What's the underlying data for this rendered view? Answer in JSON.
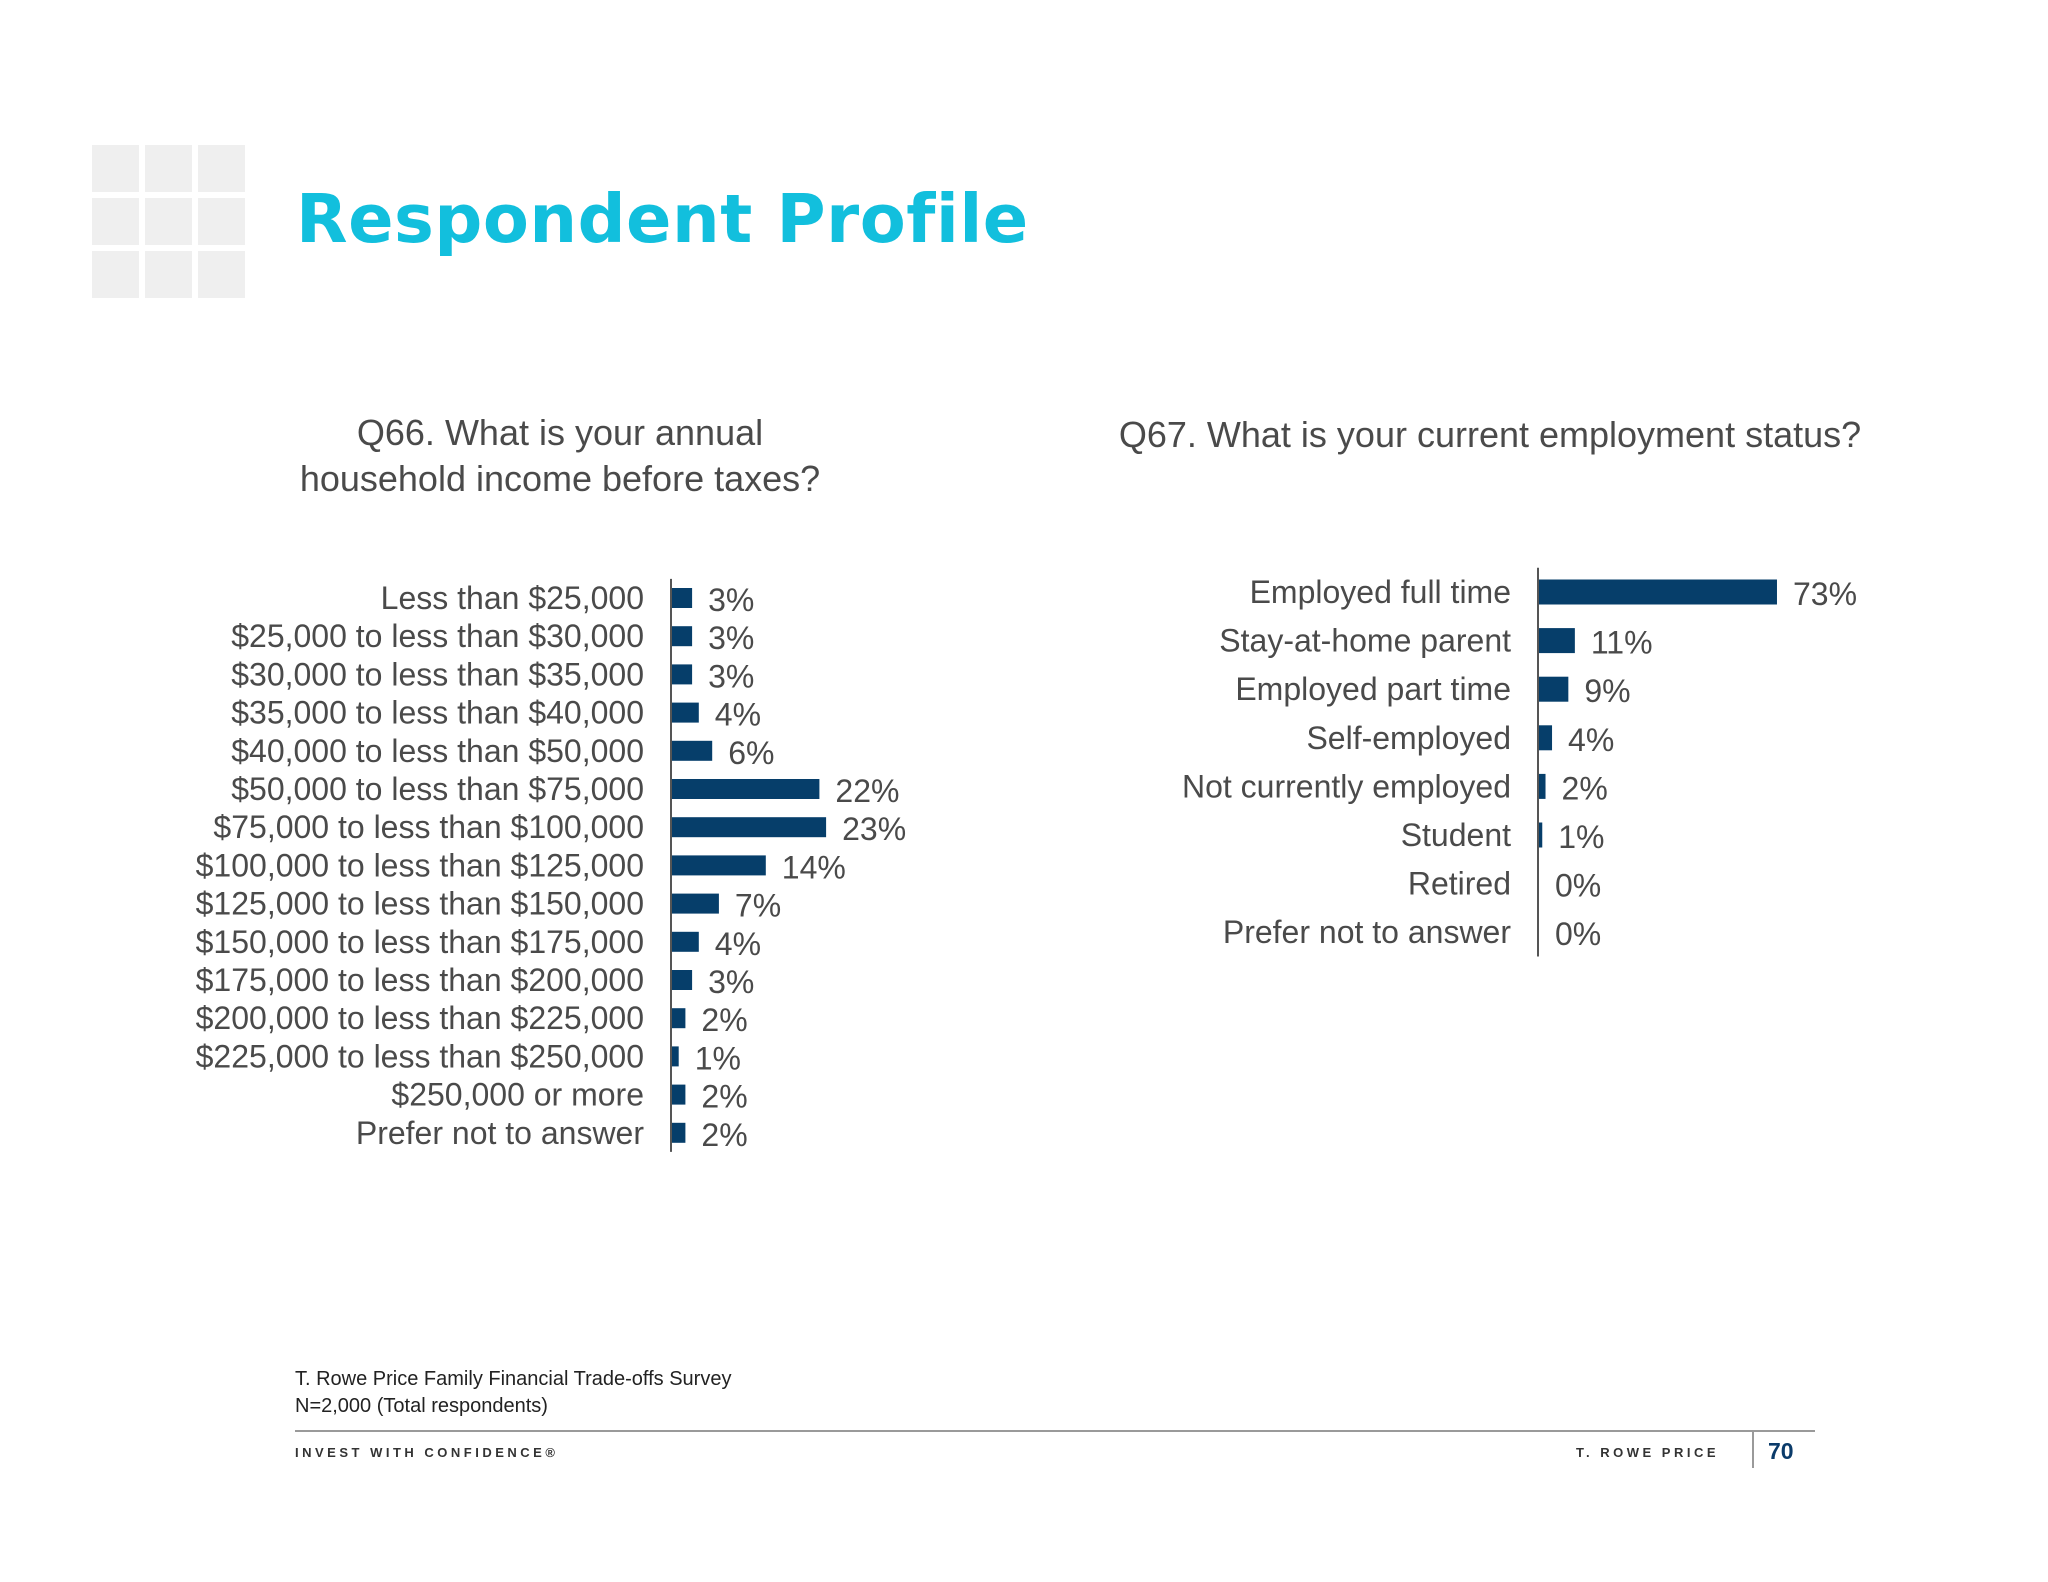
{
  "header": {
    "title": "Respondent Profile"
  },
  "colors": {
    "title": "#12bfdd",
    "bar": "#063e6a",
    "axis": "#555555"
  },
  "chart_data": [
    {
      "type": "bar",
      "orientation": "horizontal",
      "title_lines": [
        "Q66. What is your annual",
        "household income before taxes?"
      ],
      "categories": [
        "Less than $25,000",
        "$25,000 to less than $30,000",
        "$30,000 to less than $35,000",
        "$35,000 to less than $40,000",
        "$40,000 to less than $50,000",
        "$50,000 to less than $75,000",
        "$75,000 to less than $100,000",
        "$100,000 to less than $125,000",
        "$125,000 to less than $150,000",
        "$150,000 to less than $175,000",
        "$175,000 to less than $200,000",
        "$200,000 to less than $225,000",
        "$225,000 to less than $250,000",
        "$250,000 or more",
        "Prefer not to answer"
      ],
      "values": [
        3,
        3,
        3,
        4,
        6,
        22,
        23,
        14,
        7,
        4,
        3,
        2,
        1,
        2,
        2
      ],
      "value_labels": [
        "3%",
        "3%",
        "3%",
        "4%",
        "6%",
        "22%",
        "23%",
        "14%",
        "7%",
        "4%",
        "3%",
        "2%",
        "1%",
        "2%",
        "2%"
      ],
      "unit": "%",
      "grid": false,
      "legend": false
    },
    {
      "type": "bar",
      "orientation": "horizontal",
      "title": "Q67. What is your current employment status?",
      "categories": [
        "Employed full time",
        "Stay-at-home parent",
        "Employed part time",
        "Self-employed",
        "Not currently employed",
        "Student",
        "Retired",
        "Prefer not to answer"
      ],
      "values": [
        73,
        11,
        9,
        4,
        2,
        1,
        0,
        0
      ],
      "value_labels": [
        "73%",
        "11%",
        "9%",
        "4%",
        "2%",
        "1%",
        "0%",
        "0%"
      ],
      "unit": "%",
      "grid": false,
      "legend": false
    }
  ],
  "footer": {
    "source_line1": "T. Rowe Price Family Financial Trade-offs Survey",
    "source_line2": "N=2,000 (Total respondents)",
    "tagline": "INVEST WITH CONFIDENCE®",
    "brand": "T. ROWE PRICE",
    "page_number": "70"
  }
}
